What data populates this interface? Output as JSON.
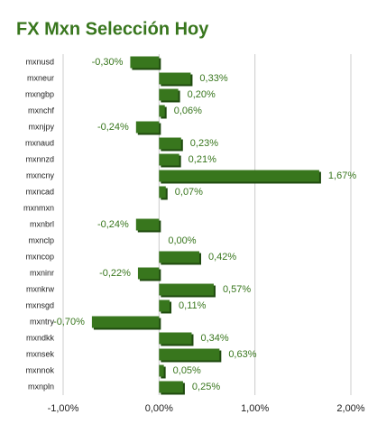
{
  "chart_data": {
    "type": "hbar",
    "title": "FX Mxn Selección Hoy",
    "categories": [
      "mxnusd",
      "mxneur",
      "mxngbp",
      "mxnchf",
      "mxnjpy",
      "mxnaud",
      "mxnnzd",
      "mxncny",
      "mxncad",
      "mxnmxn",
      "mxnbrl",
      "mxnclp",
      "mxncop",
      "mxninr",
      "mxnkrw",
      "mxnsgd",
      "mxntry",
      "mxndkk",
      "mxnsek",
      "mxnnok",
      "mxnpln"
    ],
    "values": [
      -0.3,
      0.33,
      0.2,
      0.06,
      -0.24,
      0.23,
      0.21,
      1.67,
      0.07,
      0,
      -0.24,
      0.0,
      0.42,
      -0.22,
      0.57,
      0.11,
      -0.7,
      0.34,
      0.63,
      0.05,
      0.25
    ],
    "value_labels": [
      "-0,30%",
      "0,33%",
      "0,20%",
      "0,06%",
      "-0,24%",
      "0,23%",
      "0,21%",
      "1,67%",
      "0,07%",
      null,
      "-0,24%",
      "0,00%",
      "0,42%",
      "-0,22%",
      "0,57%",
      "0,11%",
      "-0,70%",
      "0,34%",
      "0,63%",
      "0,05%",
      "0,25%"
    ],
    "color": "#38761d",
    "xlim": [
      -1,
      2
    ],
    "xticks": [
      {
        "value": -1,
        "label": "-1,00%"
      },
      {
        "value": 0,
        "label": "0,00%"
      },
      {
        "value": 1,
        "label": "1,00%"
      },
      {
        "value": 2,
        "label": "2,00%"
      }
    ],
    "grid": true
  }
}
